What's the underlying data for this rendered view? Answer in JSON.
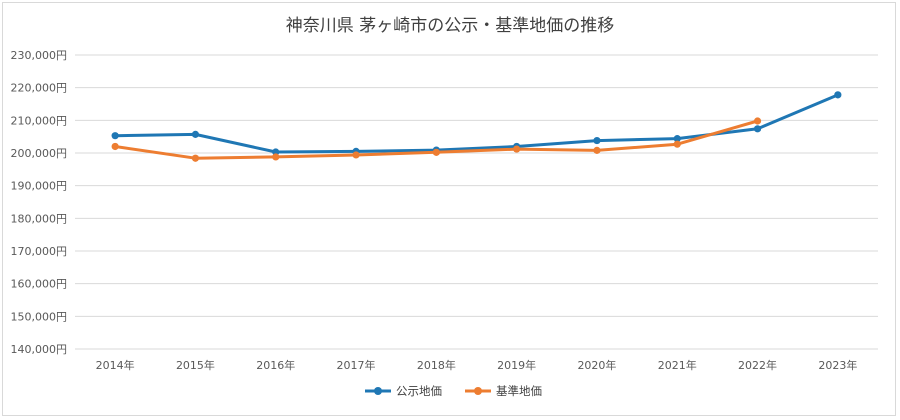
{
  "chart_data": {
    "type": "line",
    "title": "神奈川県 茅ヶ崎市の公示・基準地価の推移",
    "categories": [
      "2014年",
      "2015年",
      "2016年",
      "2017年",
      "2018年",
      "2019年",
      "2020年",
      "2021年",
      "2022年",
      "2023年"
    ],
    "y_tick_labels": [
      "230,000円",
      "220,000円",
      "210,000円",
      "200,000円",
      "190,000円",
      "180,000円",
      "170,000円",
      "160,000円",
      "150,000円",
      "140,000円"
    ],
    "ylim": [
      140000,
      230000
    ],
    "y_step": 10000,
    "grid": true,
    "legend_position": "bottom",
    "series": [
      {
        "name": "公示地価",
        "color": "#1f77b4",
        "values": [
          205300,
          205700,
          200300,
          200500,
          200900,
          202000,
          203800,
          204400,
          207400,
          217800
        ]
      },
      {
        "name": "基準地価",
        "color": "#ed7d31",
        "values": [
          202000,
          198400,
          198800,
          199400,
          200200,
          201200,
          200800,
          202700,
          209800,
          null
        ]
      }
    ]
  }
}
